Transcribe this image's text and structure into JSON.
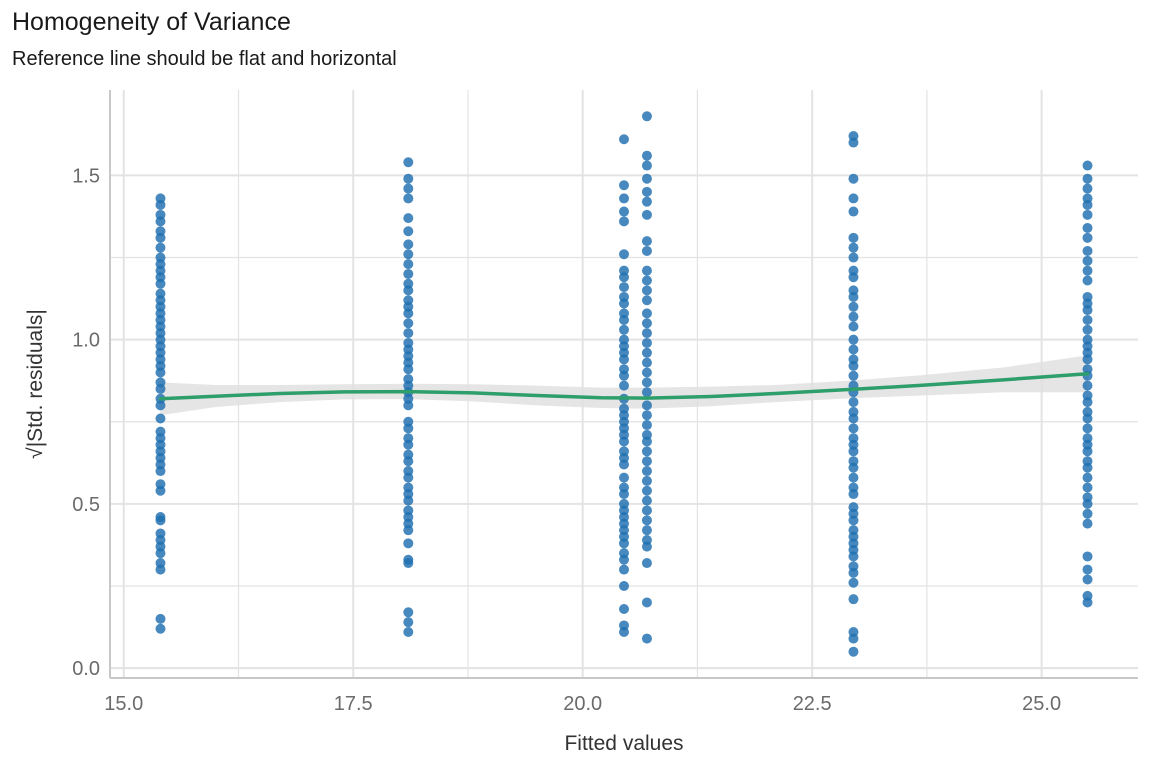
{
  "chart_data": {
    "type": "scatter",
    "title": "Homogeneity of Variance",
    "subtitle": "Reference line should be flat and horizontal",
    "xlabel": "Fitted values",
    "ylabel": "√|Std. residuals|",
    "xlim": [
      14.85,
      26.05
    ],
    "ylim": [
      -0.03,
      1.76
    ],
    "x_ticks": [
      15.0,
      17.5,
      20.0,
      22.5,
      25.0
    ],
    "x_tick_labels": [
      "15.0",
      "17.5",
      "20.0",
      "22.5",
      "25.0"
    ],
    "y_ticks": [
      0.0,
      0.5,
      1.0,
      1.5
    ],
    "y_tick_labels": [
      "0.0",
      "0.5",
      "1.0",
      "1.5"
    ],
    "grid": true,
    "colors": {
      "points": "#1f6fb0",
      "smooth_line": "#2e9e6b",
      "confidence_band": "#e0e0e0",
      "grid": "#e3e3e3",
      "axis_text": "#6b6b6b"
    },
    "series": [
      {
        "kind": "points",
        "groups": [
          {
            "x": 15.4,
            "y": [
              1.43,
              1.41,
              1.38,
              1.36,
              1.33,
              1.31,
              1.28,
              1.25,
              1.23,
              1.21,
              1.19,
              1.17,
              1.14,
              1.12,
              1.1,
              1.08,
              1.06,
              1.04,
              1.02,
              1.0,
              0.98,
              0.96,
              0.94,
              0.92,
              0.9,
              0.87,
              0.85,
              0.82,
              0.8,
              0.76,
              0.72,
              0.7,
              0.68,
              0.66,
              0.64,
              0.62,
              0.6,
              0.56,
              0.54,
              0.46,
              0.45,
              0.41,
              0.39,
              0.37,
              0.35,
              0.32,
              0.3,
              0.15,
              0.12
            ]
          },
          {
            "x": 18.1,
            "y": [
              1.54,
              1.49,
              1.46,
              1.43,
              1.37,
              1.33,
              1.29,
              1.26,
              1.23,
              1.2,
              1.17,
              1.15,
              1.12,
              1.1,
              1.08,
              1.05,
              1.02,
              0.99,
              0.97,
              0.95,
              0.93,
              0.91,
              0.88,
              0.86,
              0.84,
              0.82,
              0.8,
              0.75,
              0.73,
              0.7,
              0.68,
              0.65,
              0.63,
              0.6,
              0.58,
              0.55,
              0.53,
              0.51,
              0.48,
              0.46,
              0.44,
              0.42,
              0.38,
              0.33,
              0.32,
              0.17,
              0.14,
              0.11
            ]
          },
          {
            "x": 20.45,
            "y": [
              1.61,
              1.47,
              1.43,
              1.39,
              1.36,
              1.26,
              1.21,
              1.19,
              1.16,
              1.13,
              1.11,
              1.08,
              1.06,
              1.03,
              1.0,
              0.98,
              0.96,
              0.94,
              0.91,
              0.89,
              0.86,
              0.82,
              0.79,
              0.77,
              0.75,
              0.73,
              0.71,
              0.69,
              0.66,
              0.64,
              0.62,
              0.58,
              0.55,
              0.53,
              0.5,
              0.48,
              0.46,
              0.44,
              0.42,
              0.4,
              0.38,
              0.35,
              0.33,
              0.3,
              0.25,
              0.18,
              0.13,
              0.11
            ]
          },
          {
            "x": 20.7,
            "y": [
              1.68,
              1.56,
              1.53,
              1.49,
              1.45,
              1.42,
              1.38,
              1.3,
              1.27,
              1.21,
              1.18,
              1.15,
              1.12,
              1.08,
              1.05,
              1.02,
              0.99,
              0.96,
              0.93,
              0.9,
              0.87,
              0.84,
              0.8,
              0.77,
              0.74,
              0.71,
              0.69,
              0.66,
              0.63,
              0.6,
              0.57,
              0.54,
              0.51,
              0.48,
              0.45,
              0.42,
              0.39,
              0.37,
              0.32,
              0.2,
              0.09
            ]
          },
          {
            "x": 22.95,
            "y": [
              1.62,
              1.6,
              1.49,
              1.43,
              1.39,
              1.31,
              1.28,
              1.25,
              1.21,
              1.19,
              1.15,
              1.13,
              1.1,
              1.07,
              1.04,
              1.0,
              0.97,
              0.94,
              0.92,
              0.89,
              0.86,
              0.84,
              0.81,
              0.78,
              0.76,
              0.73,
              0.7,
              0.68,
              0.66,
              0.63,
              0.61,
              0.58,
              0.55,
              0.53,
              0.49,
              0.47,
              0.45,
              0.42,
              0.4,
              0.38,
              0.36,
              0.34,
              0.31,
              0.29,
              0.26,
              0.21,
              0.11,
              0.09,
              0.05
            ]
          },
          {
            "x": 25.5,
            "y": [
              1.53,
              1.49,
              1.46,
              1.43,
              1.41,
              1.38,
              1.34,
              1.31,
              1.27,
              1.24,
              1.21,
              1.18,
              1.13,
              1.11,
              1.09,
              1.06,
              1.03,
              1.0,
              0.98,
              0.96,
              0.94,
              0.91,
              0.89,
              0.86,
              0.83,
              0.81,
              0.78,
              0.76,
              0.73,
              0.7,
              0.68,
              0.66,
              0.63,
              0.61,
              0.58,
              0.55,
              0.52,
              0.5,
              0.47,
              0.44,
              0.34,
              0.3,
              0.27,
              0.22,
              0.2
            ]
          }
        ]
      },
      {
        "kind": "smooth",
        "x": [
          15.4,
          16.0,
          16.7,
          17.4,
          18.1,
          18.8,
          19.5,
          20.2,
          20.7,
          21.4,
          22.1,
          22.95,
          23.7,
          24.6,
          25.5
        ],
        "y": [
          0.82,
          0.828,
          0.836,
          0.841,
          0.842,
          0.838,
          0.83,
          0.823,
          0.822,
          0.827,
          0.836,
          0.849,
          0.861,
          0.878,
          0.896
        ],
        "lower": [
          0.77,
          0.795,
          0.81,
          0.818,
          0.819,
          0.812,
          0.8,
          0.792,
          0.79,
          0.797,
          0.81,
          0.822,
          0.83,
          0.84,
          0.84
        ],
        "upper": [
          0.87,
          0.862,
          0.862,
          0.864,
          0.866,
          0.864,
          0.86,
          0.854,
          0.854,
          0.857,
          0.862,
          0.876,
          0.892,
          0.916,
          0.952
        ]
      }
    ]
  }
}
